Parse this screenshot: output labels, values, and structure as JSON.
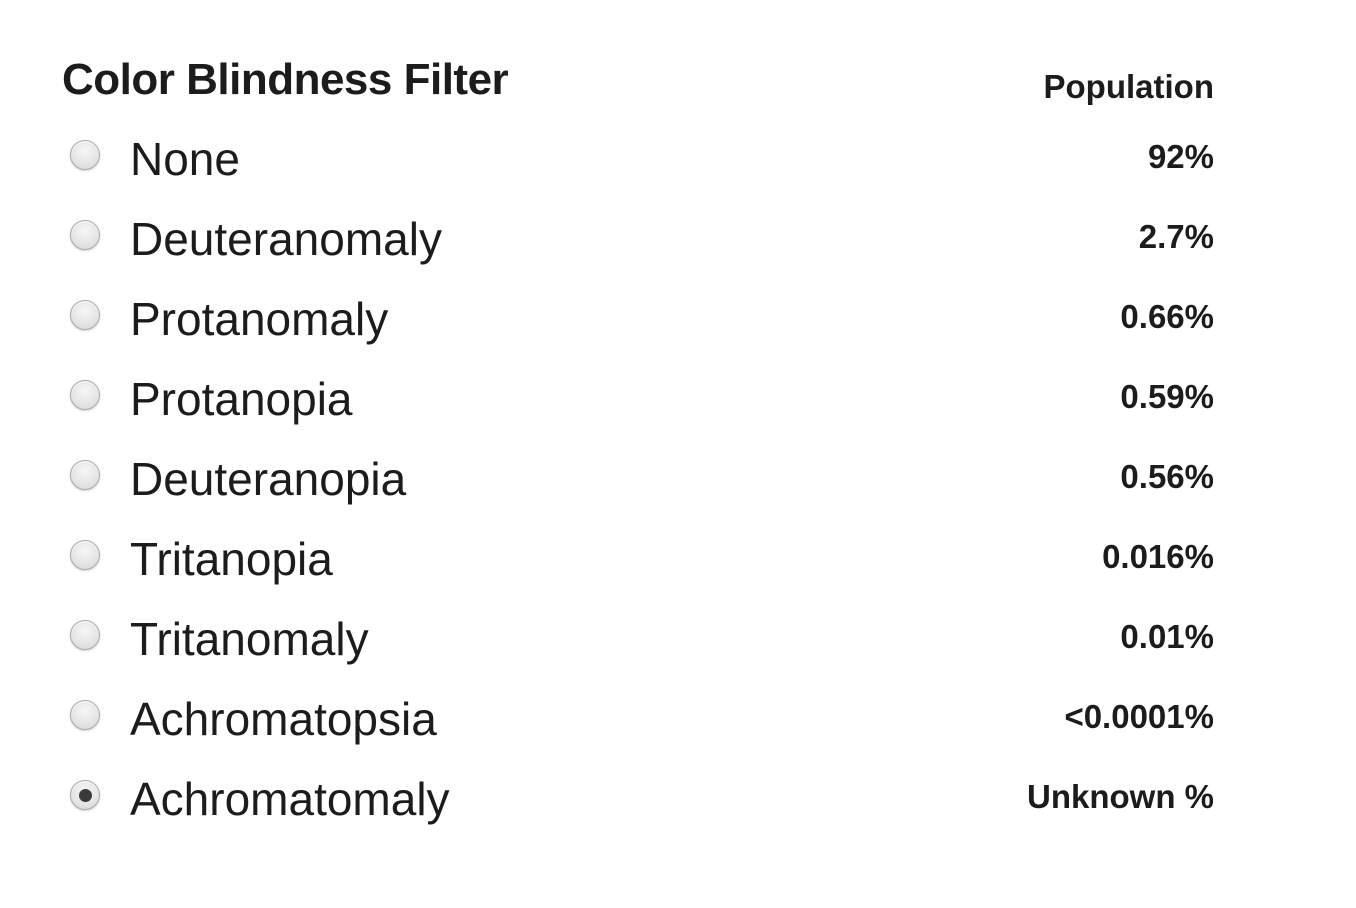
{
  "filter": {
    "title": "Color Blindness Filter",
    "population_header": "Population",
    "selected": "Achromatomaly",
    "options": [
      {
        "label": "None",
        "population": "92%",
        "checked": false
      },
      {
        "label": "Deuteranomaly",
        "population": "2.7%",
        "checked": false
      },
      {
        "label": "Protanomaly",
        "population": "0.66%",
        "checked": false
      },
      {
        "label": "Protanopia",
        "population": "0.59%",
        "checked": false
      },
      {
        "label": "Deuteranopia",
        "population": "0.56%",
        "checked": false
      },
      {
        "label": "Tritanopia",
        "population": "0.016%",
        "checked": false
      },
      {
        "label": "Tritanomaly",
        "population": "0.01%",
        "checked": false
      },
      {
        "label": "Achromatopsia",
        "population": "<0.0001%",
        "checked": false
      },
      {
        "label": "Achromatomaly",
        "population": "Unknown %",
        "checked": true
      }
    ]
  }
}
